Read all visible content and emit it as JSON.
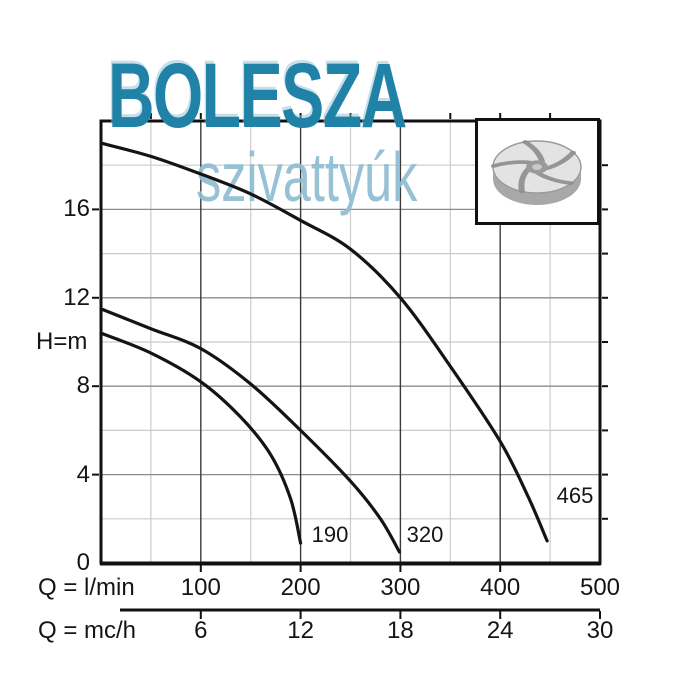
{
  "brand": {
    "name": "BOLESZA",
    "tagline": "szivattyúk",
    "name_color": "#1f82a6",
    "tagline_color": "#8fbdd3",
    "logo_icon": "impeller-icon"
  },
  "chart_data": {
    "type": "line",
    "y_axis": {
      "label": "H=m",
      "ticks": [
        16,
        12,
        8,
        4,
        0
      ],
      "ylim": [
        0,
        20
      ]
    },
    "primary_x_axis": {
      "label": "Q = l/min",
      "ticks": [
        100,
        200,
        300,
        400,
        500
      ],
      "xlim": [
        0,
        500
      ]
    },
    "secondary_x_axis": {
      "label": "Q = mc/h",
      "ticks": [
        6,
        12,
        18,
        24,
        30
      ],
      "xlim": [
        0,
        30
      ]
    },
    "grid": {
      "x_minor_step": 50,
      "x_major_step": 100,
      "y_minor_step": 2,
      "y_major_step": 4
    },
    "series": [
      {
        "name": "190",
        "points": [
          [
            0,
            10.4
          ],
          [
            50,
            9.5
          ],
          [
            100,
            8.2
          ],
          [
            140,
            6.6
          ],
          [
            170,
            4.9
          ],
          [
            190,
            2.9
          ],
          [
            200,
            0.9
          ]
        ]
      },
      {
        "name": "320",
        "points": [
          [
            0,
            11.5
          ],
          [
            50,
            10.6
          ],
          [
            100,
            9.7
          ],
          [
            150,
            8.1
          ],
          [
            200,
            6.0
          ],
          [
            250,
            3.7
          ],
          [
            280,
            2.0
          ],
          [
            299,
            0.5
          ]
        ]
      },
      {
        "name": "465",
        "points": [
          [
            0,
            19.0
          ],
          [
            50,
            18.4
          ],
          [
            100,
            17.6
          ],
          [
            150,
            16.7
          ],
          [
            200,
            15.5
          ],
          [
            250,
            14.2
          ],
          [
            300,
            12.0
          ],
          [
            350,
            8.9
          ],
          [
            400,
            5.5
          ],
          [
            428,
            3.0
          ],
          [
            447,
            1.0
          ]
        ]
      }
    ],
    "curve_color": "#141414",
    "minor_grid_color": "#cccccc",
    "major_grid_color_v": "#3a3a3a",
    "major_grid_color_h": "#8c8c8c",
    "frame_color": "#111111"
  }
}
